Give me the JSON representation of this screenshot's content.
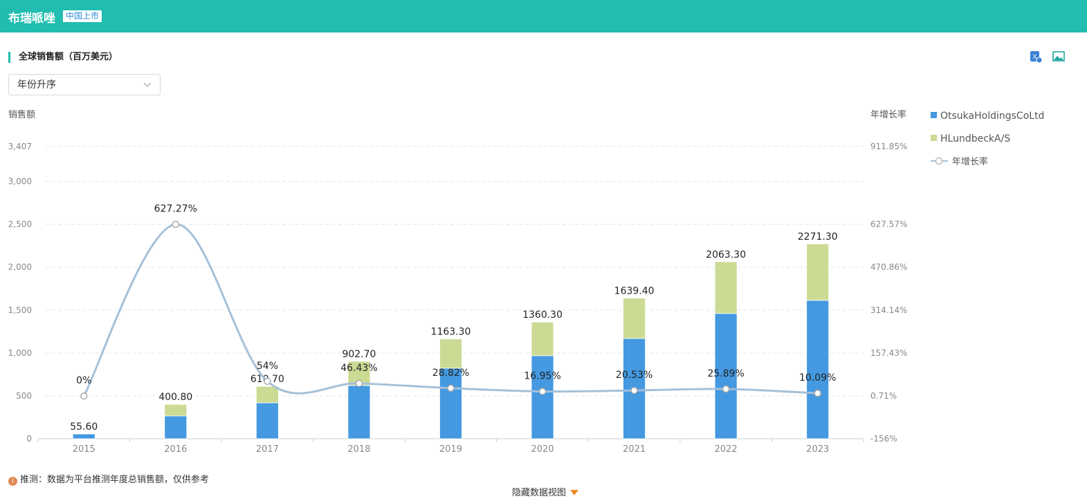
{
  "header": {
    "title": "布瑞哌唑",
    "badge": "中国上市"
  },
  "section_title": "全球销售额（百万美元）",
  "sort_select": "年份升序",
  "note": "推测：数据为平台推测年度总销售额，仅供参考",
  "toggle": "隐藏数据视图",
  "chart_data": {
    "type": "bar",
    "stacked": true,
    "y_label": "销售额",
    "y2_label": "年增长率",
    "categories": [
      "2015",
      "2016",
      "2017",
      "2018",
      "2019",
      "2020",
      "2021",
      "2022",
      "2023"
    ],
    "series": [
      {
        "name": "OtsukaHoldingsCoLtd",
        "color": "#4499e0",
        "values": [
          55.6,
          266,
          419,
          621,
          823,
          968,
          1169,
          1460,
          1613
        ]
      },
      {
        "name": "HLundbeckA/S",
        "color": "#ccdb94",
        "values": [
          0,
          134.8,
          191.7,
          281.7,
          340.3,
          392.3,
          470.4,
          603.3,
          658.3
        ]
      },
      {
        "name": "年增长率",
        "type": "line",
        "axis": "y2",
        "color": "#a5c0d9",
        "values": [
          0,
          627.27,
          54,
          46.43,
          28.82,
          16.95,
          20.53,
          25.89,
          10.09
        ],
        "value_labels": [
          "0%",
          "627.27%",
          "54%",
          "46.43%",
          "28.82%",
          "16.95%",
          "20.53%",
          "25.89%",
          "10.09%"
        ]
      }
    ],
    "totals": [
      55.6,
      400.8,
      610.7,
      902.7,
      1163.3,
      1360.3,
      1639.4,
      2063.3,
      2271.3
    ],
    "total_labels": [
      "55.60",
      "400.80",
      "610.70",
      "902.70",
      "1163.30",
      "1360.30",
      "1639.40",
      "2063.30",
      "2271.30"
    ],
    "ylim": [
      0,
      3407
    ],
    "yticks": [
      0,
      500,
      {
        "value": 1000,
        "label": "1,000"
      },
      {
        "value": 1500,
        "label": "1,500"
      },
      {
        "value": 2000,
        "label": "2,000"
      },
      {
        "value": 2500,
        "label": "2,500"
      },
      {
        "value": 3000,
        "label": "3,000"
      },
      {
        "value": 3407,
        "label": "3,407"
      }
    ],
    "y2lim": [
      -156,
      911.85
    ],
    "y2ticks": [
      {
        "value": -156,
        "label": "-156%"
      },
      {
        "value": 0.71,
        "label": "0.71%"
      },
      {
        "value": 157.43,
        "label": "157.43%"
      },
      {
        "value": 314.14,
        "label": "314.14%"
      },
      {
        "value": 470.86,
        "label": "470.86%"
      },
      {
        "value": 627.57,
        "label": "627.57%"
      },
      {
        "value": 911.85,
        "label": "911.85%"
      }
    ],
    "grid": true,
    "legend": "right"
  }
}
